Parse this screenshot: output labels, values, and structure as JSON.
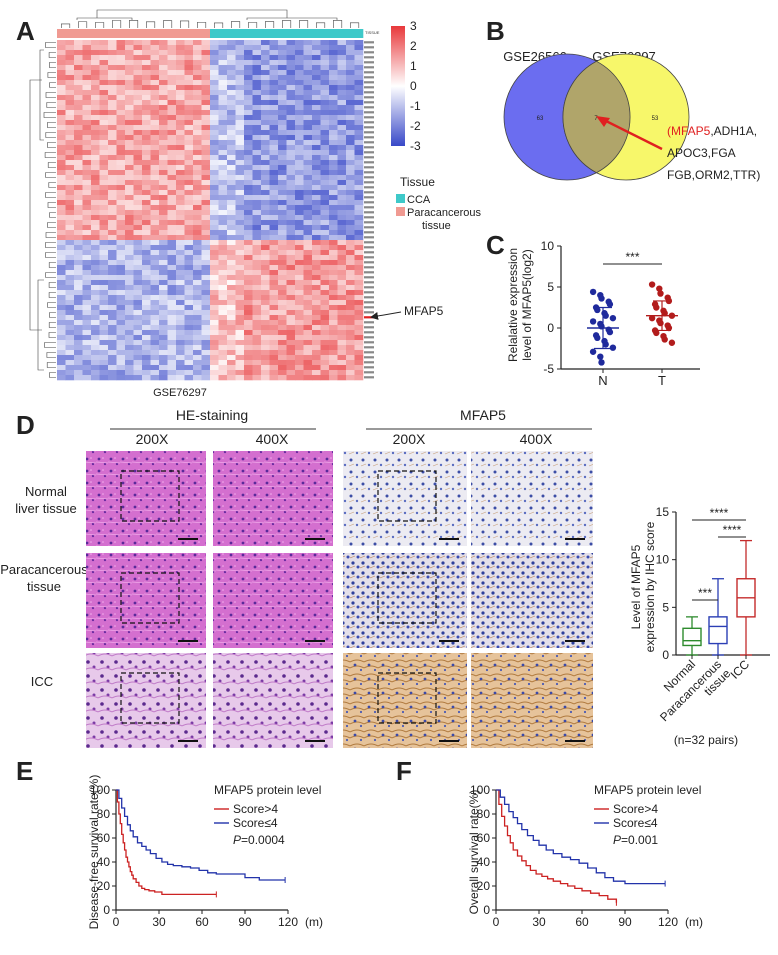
{
  "panels": {
    "a": "A",
    "b": "B",
    "c": "C",
    "d": "D",
    "e": "E",
    "f": "F"
  },
  "heatmap": {
    "dataset": "GSE76297",
    "tissue_row_label": "TISSUE",
    "scale_ticks": [
      "3",
      "2",
      "1",
      "0",
      "-1",
      "-2",
      "-3"
    ],
    "legend_title": "Tissue",
    "legend_items": [
      {
        "label": "CCA",
        "color": "#3ec9c9"
      },
      {
        "label": "Paracancerous tissue",
        "color": "#f09a92"
      }
    ],
    "legend_line1": "Paracancerous",
    "legend_line2": "tissue",
    "highlight_gene": "MFAP5",
    "colors": {
      "high": "#e8383b",
      "mid": "#ffffff",
      "low": "#3848c8"
    }
  },
  "venn": {
    "left_label": "GSE26566",
    "right_label": "GSE76297",
    "left_only": "63",
    "overlap": "7",
    "right_only": "53",
    "left_color": "#6b6df0",
    "right_color": "#f7f76a",
    "overlap_color": "#b0a56a",
    "genes_line1_red": "(MFAP5",
    "genes_line1_rest": ",ADH1A,",
    "genes_line2": "APOC3,FGA",
    "genes_line3": "FGB,ORM2,TTR)",
    "arrow_color": "#e02020"
  },
  "chart_data": [
    {
      "type": "scatter",
      "panel": "C",
      "ylabel": "Relalative expression level of MFAP5(log2)",
      "ylabel_line1": "Relalative expression",
      "ylabel_line2": "level of MFAP5(log2)",
      "categories": [
        "N",
        "T"
      ],
      "ylim": [
        -5,
        10
      ],
      "yticks": [
        "10",
        "5",
        "0",
        "-5"
      ],
      "significance": "***",
      "series": [
        {
          "name": "N",
          "color": "#1f2a9c",
          "mean": 0.0,
          "sd": 2.5,
          "values": [
            4.4,
            4.0,
            3.6,
            3.2,
            2.9,
            2.5,
            2.2,
            1.8,
            1.5,
            1.2,
            0.8,
            0.5,
            0.2,
            -0.2,
            -0.5,
            -0.9,
            -1.2,
            -1.6,
            -2.0,
            -2.4,
            -2.9,
            -3.5,
            -4.2
          ]
        },
        {
          "name": "T",
          "color": "#b21c1c",
          "mean": 1.5,
          "sd": 1.8,
          "values": [
            5.3,
            4.8,
            4.2,
            3.7,
            3.3,
            2.9,
            2.5,
            2.1,
            1.8,
            1.5,
            1.2,
            0.9,
            0.6,
            0.3,
            0.0,
            -0.3,
            -0.6,
            -1.0,
            -1.4,
            -1.8
          ]
        }
      ]
    },
    {
      "type": "box",
      "panel": "D",
      "ylabel": "Level of MFAP5 expression by IHC score",
      "ylabel_line1": "Level of MFAP5",
      "ylabel_line2": "expression by IHC score",
      "categories": [
        "Normal",
        "Paracancerous tissue",
        "ICC"
      ],
      "ylim": [
        0,
        15
      ],
      "yticks": [
        "15",
        "10",
        "5",
        "0"
      ],
      "boxes": [
        {
          "name": "Normal",
          "color": "#2e8b2e",
          "min": 0,
          "q1": 1,
          "median": 1.5,
          "q3": 2.8,
          "max": 4
        },
        {
          "name": "Paracancerous tissue",
          "color": "#2b3fb5",
          "min": 0,
          "q1": 1.2,
          "median": 3,
          "q3": 4,
          "max": 8
        },
        {
          "name": "ICC",
          "color": "#c42b2b",
          "min": 0,
          "q1": 4,
          "median": 6,
          "q3": 8,
          "max": 12
        }
      ],
      "significance": [
        "***",
        "****",
        "****"
      ],
      "note": "(n=32 pairs)"
    },
    {
      "type": "line",
      "panel": "E",
      "ylabel": "Disease-free survival rate(%)",
      "xlabel": "(m)",
      "xlim": [
        0,
        120
      ],
      "ylim": [
        0,
        100
      ],
      "xticks": [
        "0",
        "30",
        "60",
        "90",
        "120"
      ],
      "yticks": [
        "100",
        "80",
        "60",
        "40",
        "20",
        "0"
      ],
      "legend_title": "MFAP5 protein level",
      "p_label": "P",
      "p_value": "=0.0004",
      "series": [
        {
          "name": "Score>4",
          "color": "#cc2222",
          "x": [
            0,
            1,
            2,
            3,
            4,
            5,
            6,
            7,
            8,
            9,
            10,
            11,
            12,
            14,
            16,
            18,
            20,
            23,
            27,
            32,
            40,
            50,
            60,
            70
          ],
          "y": [
            100,
            90,
            80,
            72,
            63,
            56,
            50,
            44,
            40,
            36,
            32,
            29,
            26,
            23,
            20,
            18,
            17,
            16,
            15,
            13,
            13,
            13,
            13,
            13
          ]
        },
        {
          "name": "Score≤4",
          "color": "#2233aa",
          "x": [
            0,
            2,
            4,
            6,
            8,
            10,
            12,
            15,
            18,
            21,
            24,
            28,
            32,
            36,
            40,
            46,
            52,
            58,
            64,
            70,
            80,
            90,
            100,
            110,
            118
          ],
          "y": [
            100,
            93,
            85,
            78,
            71,
            66,
            61,
            56,
            53,
            50,
            47,
            43,
            40,
            38,
            37,
            36,
            35,
            33,
            31,
            30,
            30,
            27,
            25,
            25,
            25
          ]
        }
      ]
    },
    {
      "type": "line",
      "panel": "F",
      "ylabel": "Overall survival rate(%)",
      "xlabel": "(m)",
      "xlim": [
        0,
        120
      ],
      "ylim": [
        0,
        100
      ],
      "xticks": [
        "0",
        "30",
        "60",
        "90",
        "120"
      ],
      "yticks": [
        "100",
        "80",
        "60",
        "40",
        "20",
        "0"
      ],
      "legend_title": "MFAP5 protein level",
      "p_label": "P",
      "p_value": "=0.001",
      "series": [
        {
          "name": "Score>4",
          "color": "#cc2222",
          "x": [
            0,
            2,
            4,
            6,
            8,
            10,
            12,
            15,
            18,
            21,
            24,
            28,
            32,
            36,
            40,
            45,
            50,
            55,
            60,
            66,
            72,
            78,
            84
          ],
          "y": [
            100,
            88,
            78,
            70,
            62,
            56,
            50,
            45,
            41,
            37,
            33,
            30,
            28,
            26,
            24,
            22,
            20,
            18,
            16,
            14,
            12,
            9,
            6
          ]
        },
        {
          "name": "Score≤4",
          "color": "#2233aa",
          "x": [
            0,
            3,
            6,
            9,
            12,
            15,
            18,
            22,
            26,
            30,
            35,
            40,
            46,
            52,
            58,
            64,
            70,
            76,
            82,
            90,
            100,
            110,
            118
          ],
          "y": [
            100,
            94,
            88,
            82,
            77,
            72,
            67,
            62,
            58,
            54,
            50,
            47,
            44,
            42,
            39,
            35,
            31,
            27,
            24,
            22,
            22,
            22,
            22
          ]
        }
      ]
    }
  ],
  "histology": {
    "he_header": "HE-staining",
    "mfap5_header": "MFAP5",
    "mag_200": "200X",
    "mag_400": "400X",
    "rows": [
      {
        "label_line1": "Normal",
        "label_line2": "liver tissue"
      },
      {
        "label_line1": "Paracancerous",
        "label_line2": "tissue"
      },
      {
        "label_line1": "ICC",
        "label_line2": ""
      }
    ]
  }
}
